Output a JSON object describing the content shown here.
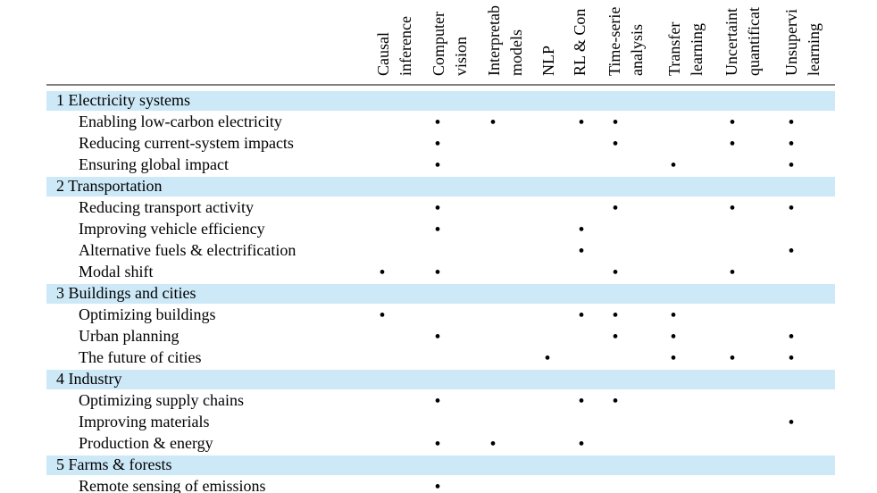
{
  "columns": [
    {
      "lines": [
        "Causal",
        "inference"
      ]
    },
    {
      "lines": [
        "Computer",
        "vision"
      ]
    },
    {
      "lines": [
        "Interpretab",
        "models"
      ]
    },
    {
      "lines": [
        "NLP"
      ]
    },
    {
      "lines": [
        "RL & Con"
      ]
    },
    {
      "lines": [
        "Time-serie",
        "analysis"
      ]
    },
    {
      "lines": [
        "Transfer",
        "learning"
      ]
    },
    {
      "lines": [
        "Uncertaint",
        "quantificat"
      ]
    },
    {
      "lines": [
        "Unsupervi",
        "learning"
      ]
    }
  ],
  "sections": [
    {
      "title": "1 Electricity systems",
      "rows": [
        {
          "label": "Enabling low-carbon electricity",
          "cells": [
            null,
            "•",
            "•",
            null,
            "•",
            "•",
            null,
            "•",
            "•"
          ]
        },
        {
          "label": "Reducing current-system impacts",
          "cells": [
            null,
            "•",
            null,
            null,
            null,
            "•",
            null,
            "•",
            "•"
          ]
        },
        {
          "label": "Ensuring global impact",
          "cells": [
            null,
            "•",
            null,
            null,
            null,
            null,
            "•",
            null,
            "•"
          ]
        }
      ]
    },
    {
      "title": "2 Transportation",
      "rows": [
        {
          "label": "Reducing transport activity",
          "cells": [
            null,
            "•",
            null,
            null,
            null,
            "•",
            null,
            "•",
            "•"
          ]
        },
        {
          "label": "Improving vehicle efficiency",
          "cells": [
            null,
            "•",
            null,
            null,
            "•",
            null,
            null,
            null,
            null
          ]
        },
        {
          "label": "Alternative fuels & electrification",
          "cells": [
            null,
            null,
            null,
            null,
            "•",
            null,
            null,
            null,
            "•"
          ]
        },
        {
          "label": "Modal shift",
          "cells": [
            "•",
            "•",
            null,
            null,
            null,
            "•",
            null,
            "•",
            null
          ]
        }
      ]
    },
    {
      "title": "3 Buildings and cities",
      "rows": [
        {
          "label": "Optimizing buildings",
          "cells": [
            "•",
            null,
            null,
            null,
            "•",
            "•",
            "•",
            null,
            null
          ]
        },
        {
          "label": "Urban planning",
          "cells": [
            null,
            "•",
            null,
            null,
            null,
            "•",
            "•",
            null,
            "•"
          ]
        },
        {
          "label": "The future of cities",
          "cells": [
            null,
            null,
            null,
            "•",
            null,
            null,
            "•",
            "•",
            "•"
          ]
        }
      ]
    },
    {
      "title": "4 Industry",
      "rows": [
        {
          "label": "Optimizing supply chains",
          "cells": [
            null,
            "•",
            null,
            null,
            "•",
            "•",
            null,
            null,
            null
          ]
        },
        {
          "label": "Improving materials",
          "cells": [
            null,
            null,
            null,
            null,
            null,
            null,
            null,
            null,
            "•"
          ]
        },
        {
          "label": "Production & energy",
          "cells": [
            null,
            "•",
            "•",
            null,
            "•",
            null,
            null,
            null,
            null
          ]
        }
      ]
    },
    {
      "title": "5 Farms & forests",
      "rows": [
        {
          "label": "Remote sensing of emissions",
          "cells": [
            null,
            "•",
            null,
            null,
            null,
            null,
            null,
            null,
            null
          ]
        }
      ]
    }
  ]
}
